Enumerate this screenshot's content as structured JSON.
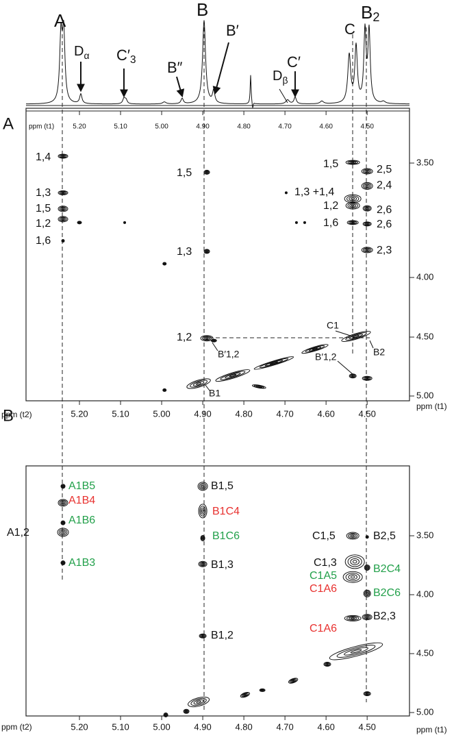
{
  "spectrum_1d": {
    "peaks": [
      {
        "text": "A"
      },
      {
        "text": "D",
        "sub": "α"
      },
      {
        "text": "C′",
        "sub": "3"
      },
      {
        "text": "B″"
      },
      {
        "text": "B"
      },
      {
        "text": "B′"
      },
      {
        "text": "D",
        "sub": "β"
      },
      {
        "text": "C′"
      },
      {
        "text": "C"
      },
      {
        "text": "B",
        "sub": "2"
      }
    ]
  },
  "panel_a": {
    "label": "A",
    "top_axis_label": "ppm (t1)",
    "x_axis_label": "ppm (t2)",
    "y_axis_label": "ppm (t1)",
    "xlim": [
      5.33,
      4.397
    ],
    "xticks": [
      {
        "value": 5.2,
        "label": "5.20"
      },
      {
        "value": 5.1,
        "label": "5.10"
      },
      {
        "value": 5.0,
        "label": "5.00"
      },
      {
        "value": 4.9,
        "label": "4.90"
      },
      {
        "value": 4.8,
        "label": "4.80"
      },
      {
        "value": 4.7,
        "label": "4.70"
      },
      {
        "value": 4.6,
        "label": "4.60"
      },
      {
        "value": 4.5,
        "label": "4.50"
      }
    ],
    "yticks": [
      {
        "value": 3.5,
        "label": "3.50"
      },
      {
        "value": 4.0,
        "label": "4.00"
      },
      {
        "value": 4.5,
        "label": "4.50"
      },
      {
        "value": 5.0,
        "label": "5.00"
      }
    ],
    "peaks": [
      {
        "x": 5.24,
        "y": 3.47
      },
      {
        "x": 5.24,
        "y": 3.63
      },
      {
        "x": 5.24,
        "y": 3.7
      },
      {
        "x": 5.24,
        "y": 3.745
      },
      {
        "x": 5.24,
        "y": 3.84
      },
      {
        "x": 5.2,
        "y": 3.76
      },
      {
        "x": 5.09,
        "y": 3.76
      },
      {
        "x": 4.89,
        "y": 3.54
      },
      {
        "x": 4.89,
        "y": 3.886
      },
      {
        "x": 4.89,
        "y": 4.51
      },
      {
        "x": 4.873,
        "y": 4.53
      },
      {
        "x": 4.993,
        "y": 3.94
      },
      {
        "x": 4.91,
        "y": 4.895
      },
      {
        "x": 4.827,
        "y": 4.826
      },
      {
        "x": 4.727,
        "y": 4.72
      },
      {
        "x": 4.627,
        "y": 4.6
      },
      {
        "x": 4.763,
        "y": 4.92
      },
      {
        "x": 4.993,
        "y": 4.95
      },
      {
        "x": 4.535,
        "y": 3.497
      },
      {
        "x": 4.5,
        "y": 3.536
      },
      {
        "x": 4.5,
        "y": 3.6
      },
      {
        "x": 4.535,
        "y": 3.656
      },
      {
        "x": 4.535,
        "y": 3.686
      },
      {
        "x": 4.5,
        "y": 3.698
      },
      {
        "x": 4.535,
        "y": 3.76
      },
      {
        "x": 4.5,
        "y": 3.766
      },
      {
        "x": 4.5,
        "y": 3.88
      },
      {
        "x": 4.527,
        "y": 4.494
      },
      {
        "x": 4.535,
        "y": 4.83
      },
      {
        "x": 4.5,
        "y": 4.85
      },
      {
        "x": 4.672,
        "y": 3.76
      },
      {
        "x": 4.652,
        "y": 3.76
      },
      {
        "x": 4.697,
        "y": 3.63
      }
    ],
    "labels": [
      {
        "text": "1,4"
      },
      {
        "text": "1,3"
      },
      {
        "text": "1,5"
      },
      {
        "text": "1,2"
      },
      {
        "text": "1,6"
      },
      {
        "text": "1,5"
      },
      {
        "text": "1,3"
      },
      {
        "text": "1,2"
      },
      {
        "text": "B′1,2"
      },
      {
        "text": "B1"
      },
      {
        "text": "1,5"
      },
      {
        "text": "2,5"
      },
      {
        "text": "2,4"
      },
      {
        "text": "1,3 +1,4"
      },
      {
        "text": "1,2"
      },
      {
        "text": "2,6"
      },
      {
        "text": "1,6"
      },
      {
        "text": "2,6"
      },
      {
        "text": "2,3"
      },
      {
        "text": "C1"
      },
      {
        "text": "B2"
      },
      {
        "text": "B′1,2"
      }
    ]
  },
  "panel_b": {
    "label": "B",
    "x_axis_label": "ppm (t2)",
    "y_axis_label": "ppm (t1)",
    "xlim": [
      5.33,
      4.397
    ],
    "ylim": [
      2.907,
      5.029
    ],
    "xticks": [
      {
        "value": 5.2,
        "label": "5.20"
      },
      {
        "value": 5.1,
        "label": "5.10"
      },
      {
        "value": 5.0,
        "label": "5.00"
      },
      {
        "value": 4.9,
        "label": "4.90"
      },
      {
        "value": 4.8,
        "label": "4.80"
      },
      {
        "value": 4.7,
        "label": "4.70"
      },
      {
        "value": 4.6,
        "label": "4.60"
      },
      {
        "value": 4.5,
        "label": "4.50"
      }
    ],
    "yticks": [
      {
        "value": 3.5,
        "label": "3.50"
      },
      {
        "value": 4.0,
        "label": "4.00"
      },
      {
        "value": 4.5,
        "label": "4.50"
      },
      {
        "value": 5.0,
        "label": "5.00"
      }
    ],
    "peaks": [
      {
        "x": 5.24,
        "y": 3.08
      },
      {
        "x": 5.24,
        "y": 3.22
      },
      {
        "x": 5.24,
        "y": 3.39
      },
      {
        "x": 5.24,
        "y": 3.47
      },
      {
        "x": 5.24,
        "y": 3.73
      },
      {
        "x": 4.9,
        "y": 3.08
      },
      {
        "x": 4.9,
        "y": 3.29
      },
      {
        "x": 4.9,
        "y": 3.52
      },
      {
        "x": 4.9,
        "y": 3.74
      },
      {
        "x": 4.9,
        "y": 4.35
      },
      {
        "x": 4.535,
        "y": 3.5
      },
      {
        "x": 4.5,
        "y": 3.51
      },
      {
        "x": 4.53,
        "y": 3.72
      },
      {
        "x": 4.535,
        "y": 3.85
      },
      {
        "x": 4.5,
        "y": 3.77
      },
      {
        "x": 4.5,
        "y": 3.99
      },
      {
        "x": 4.5,
        "y": 4.19
      },
      {
        "x": 4.535,
        "y": 4.2
      },
      {
        "x": 4.527,
        "y": 4.48
      },
      {
        "x": 4.5,
        "y": 4.84
      },
      {
        "x": 4.597,
        "y": 4.59
      },
      {
        "x": 4.68,
        "y": 4.73
      },
      {
        "x": 4.755,
        "y": 4.81
      },
      {
        "x": 4.797,
        "y": 4.85
      },
      {
        "x": 4.91,
        "y": 4.91
      },
      {
        "x": 4.94,
        "y": 4.99
      },
      {
        "x": 4.99,
        "y": 5.02
      }
    ],
    "labels": [
      {
        "text": "A1B5",
        "color": "#22a04a"
      },
      {
        "text": "A1B4",
        "color": "#e8312f"
      },
      {
        "text": "A1B6",
        "color": "#22a04a"
      },
      {
        "text": "A1,2",
        "color": "#111111"
      },
      {
        "text": "A1B3",
        "color": "#22a04a"
      },
      {
        "text": "B1,5",
        "color": "#111111"
      },
      {
        "text": "B1C4",
        "color": "#e8312f"
      },
      {
        "text": "B1C6",
        "color": "#22a04a"
      },
      {
        "text": "B1,3",
        "color": "#111111"
      },
      {
        "text": "B1,2",
        "color": "#111111"
      },
      {
        "text": "C1,5",
        "color": "#111111"
      },
      {
        "text": "B2,5",
        "color": "#111111"
      },
      {
        "text": "C1,3",
        "color": "#111111"
      },
      {
        "text": "C1A5",
        "color": "#22a04a"
      },
      {
        "text": "C1A6",
        "color": "#e8312f"
      },
      {
        "text": "B2C4",
        "color": "#22a04a"
      },
      {
        "text": "B2C6",
        "color": "#22a04a"
      },
      {
        "text": "B2,3",
        "color": "#111111"
      },
      {
        "text": "C1A6",
        "color": "#e8312f"
      }
    ]
  }
}
